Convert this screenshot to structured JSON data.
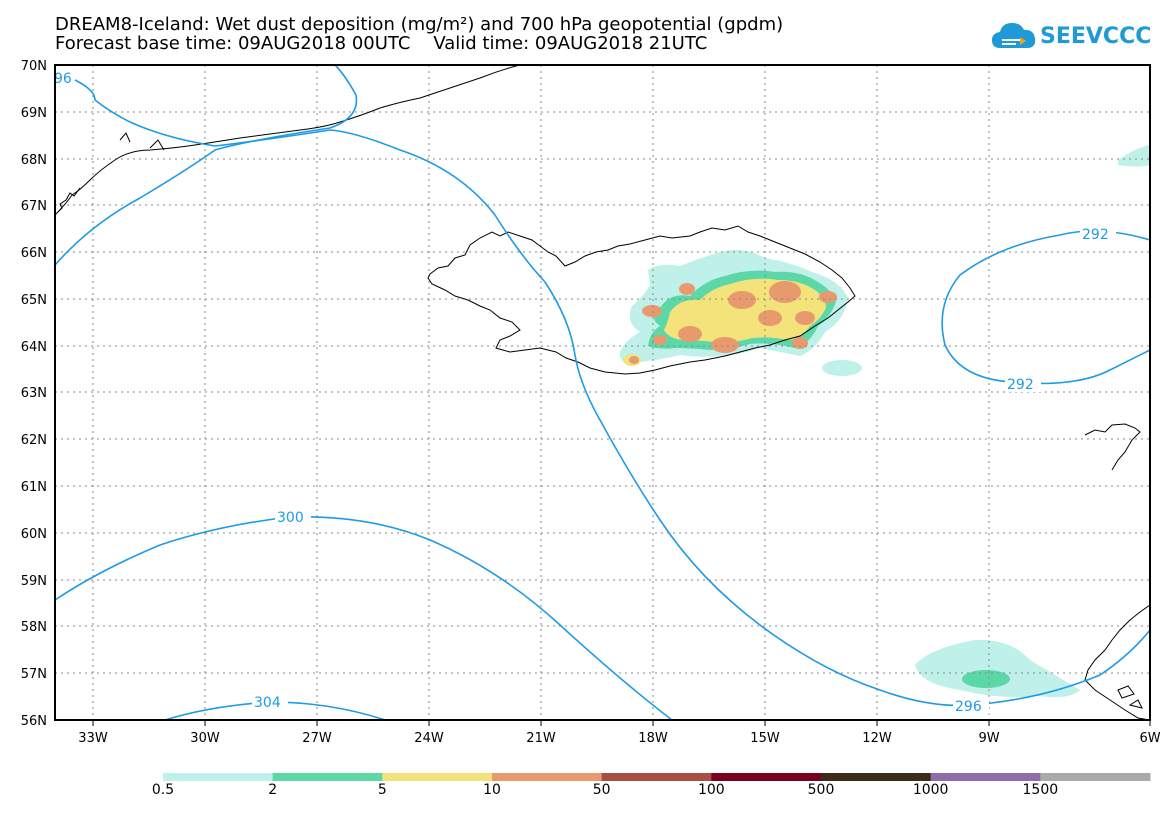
{
  "title": {
    "line1": "DREAM8-Iceland: Wet dust deposition (mg/m²) and 700 hPa geopotential (gpdm)",
    "line2": "Forecast base time: 09AUG2018 00UTC    Valid time: 09AUG2018 21UTC"
  },
  "logo": {
    "text": "SEEVCCC",
    "icon": "cloud-logo-icon",
    "color": "#1f9ad6"
  },
  "map": {
    "lat_labels": [
      "70N",
      "69N",
      "68N",
      "67N",
      "66N",
      "65N",
      "64N",
      "63N",
      "62N",
      "61N",
      "60N",
      "59N",
      "58N",
      "57N",
      "56N"
    ],
    "lon_labels": [
      "33W",
      "30W",
      "27W",
      "24W",
      "21W",
      "18W",
      "15W",
      "12W",
      "9W",
      "6W"
    ],
    "contour_labels": [
      "96",
      "292",
      "292",
      "300",
      "304",
      "296"
    ],
    "contour_color": "#1e9be6",
    "coast_color": "#000000",
    "grid": "dotted"
  },
  "legend": {
    "colors": [
      "#bff0ea",
      "#5cd8a8",
      "#f4e37a",
      "#e89a6e",
      "#a84e44",
      "#7a0020",
      "#3c2a1a",
      "#8e6ea8",
      "#aaaaaa"
    ],
    "labels": [
      "0.5",
      "2",
      "5",
      "10",
      "50",
      "100",
      "500",
      "1000",
      "1500"
    ]
  }
}
